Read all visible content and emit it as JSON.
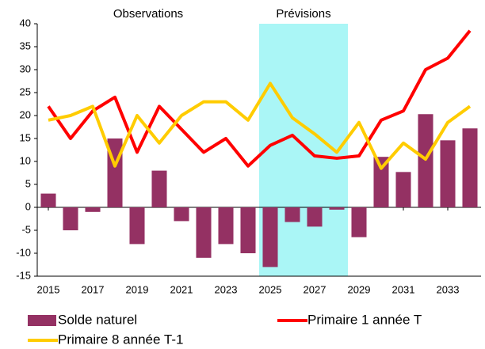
{
  "chart_data": {
    "type": "bar-line",
    "annotations": [
      {
        "text": "Observations",
        "x": 2019.5,
        "color": "#000000"
      },
      {
        "text": "Prévisions",
        "x": 2026.5,
        "color": "#0000cc"
      }
    ],
    "highlight": {
      "from": 2024.5,
      "to": 2028.5,
      "color": "#aaf6f6"
    },
    "x": [
      2015,
      2016,
      2017,
      2018,
      2019,
      2020,
      2021,
      2022,
      2023,
      2024,
      2025,
      2026,
      2027,
      2028,
      2029,
      2030,
      2031,
      2032,
      2033,
      2034
    ],
    "xlim": [
      2014.5,
      2034.5
    ],
    "xticks": [
      2015,
      2017,
      2019,
      2021,
      2023,
      2025,
      2027,
      2029,
      2031,
      2033
    ],
    "ylim": [
      -15,
      40
    ],
    "yticks": [
      -15,
      -10,
      -5,
      0,
      5,
      10,
      15,
      20,
      25,
      30,
      35,
      40
    ],
    "series": [
      {
        "name": "Solde naturel",
        "type": "bar",
        "color": "#943163",
        "values": [
          3,
          -5,
          -1,
          15,
          -8,
          8,
          -3,
          -11,
          -8,
          -10,
          -13,
          -3.2,
          -4.2,
          -0.5,
          -6.5,
          11,
          7.7,
          20.3,
          14.6,
          17.2
        ]
      },
      {
        "name": "Primaire 1 année T",
        "type": "line",
        "color": "#ff0000",
        "values": [
          22,
          15,
          21,
          24,
          12,
          22,
          17,
          12,
          15,
          9,
          13.5,
          15.7,
          11.2,
          10.7,
          11.2,
          19,
          21,
          30,
          32.5,
          38.5
        ]
      },
      {
        "name": "Primaire 8 année T-1",
        "type": "line",
        "color": "#ffcc00",
        "values": [
          19,
          20,
          22,
          9,
          20,
          14,
          20,
          23,
          23,
          19,
          27,
          19.5,
          16,
          12,
          18.5,
          8.5,
          14,
          10.5,
          18.5,
          22
        ]
      }
    ]
  }
}
